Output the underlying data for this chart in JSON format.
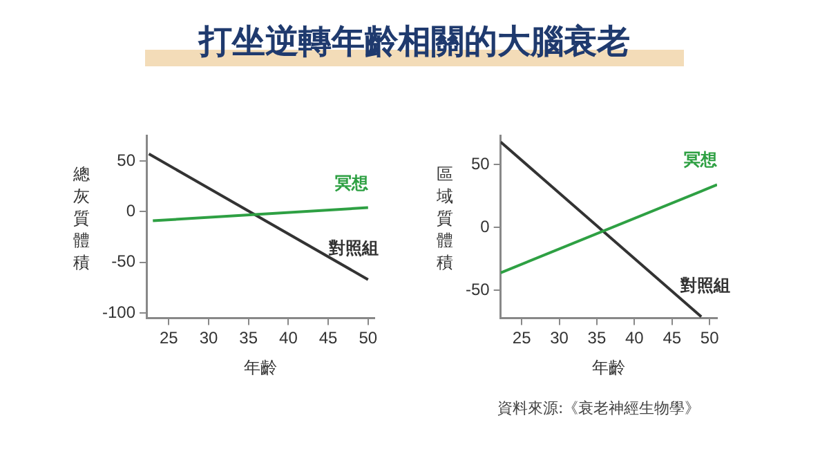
{
  "chart_data": [
    {
      "type": "line",
      "title": "打坐逆轉年齡相關的大腦衰老",
      "xlabel": "年齡",
      "ylabel": "總灰質體積",
      "xlim": [
        22.2,
        50.8
      ],
      "xticks": [
        25,
        30,
        35,
        40,
        45,
        50
      ],
      "ylim": [
        -105,
        75
      ],
      "yticks": [
        50,
        0,
        -50,
        -100
      ],
      "grid": false,
      "legend": false,
      "marker": "none",
      "series": [
        {
          "name": "冥想",
          "color": "#2ea043",
          "x": [
            23,
            50
          ],
          "values": [
            -9,
            4
          ]
        },
        {
          "name": "對照組",
          "color": "#333333",
          "x": [
            22.5,
            50
          ],
          "values": [
            57,
            -67
          ]
        }
      ]
    },
    {
      "type": "line",
      "xlabel": "年齡",
      "ylabel": "區域質體積",
      "xlim": [
        22.2,
        51
      ],
      "xticks": [
        25,
        30,
        35,
        40,
        45,
        50
      ],
      "ylim": [
        -72,
        73
      ],
      "yticks": [
        50,
        0,
        -50
      ],
      "grid": false,
      "legend": false,
      "marker": "none",
      "annotations": [
        "資料來源:《衰老神經生物學》"
      ],
      "series": [
        {
          "name": "冥想",
          "color": "#2ea043",
          "x": [
            22.2,
            51
          ],
          "values": [
            -36,
            34
          ]
        },
        {
          "name": "對照組",
          "color": "#333333",
          "x": [
            22.2,
            48.9
          ],
          "values": [
            68,
            -71
          ]
        }
      ]
    }
  ]
}
